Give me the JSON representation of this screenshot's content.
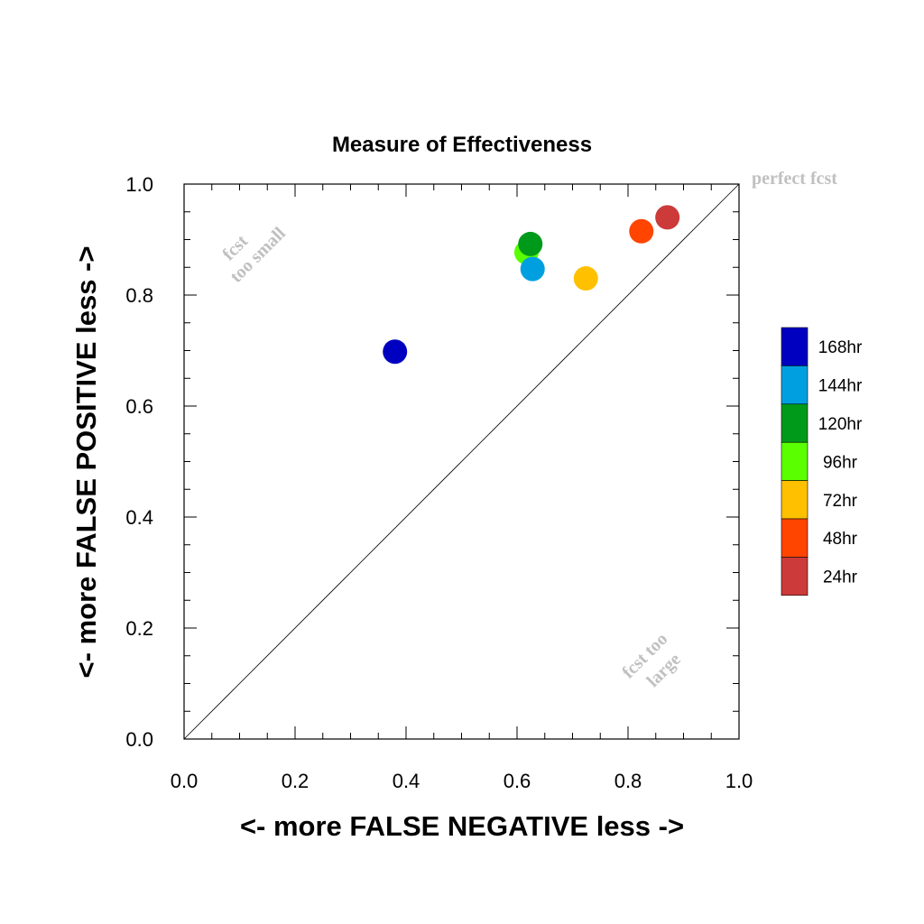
{
  "chart_data": {
    "type": "scatter",
    "title": "Measure of Effectiveness",
    "xlabel": "<- more   FALSE NEGATIVE   less ->",
    "ylabel": "<- more   FALSE POSITIVE   less ->",
    "xlim": [
      0,
      1
    ],
    "ylim": [
      0,
      1
    ],
    "x_ticks": [
      "0.0",
      "0.2",
      "0.4",
      "0.6",
      "0.8",
      "1.0"
    ],
    "y_ticks": [
      "0.0",
      "0.2",
      "0.4",
      "0.6",
      "0.8",
      "1.0"
    ],
    "grid": false,
    "diagonal_line": true,
    "annotations": {
      "perfect": "perfect fcst",
      "small_line1": "fcst",
      "small_line2": "too small",
      "large_line1": "fcst too",
      "large_line2": "large"
    },
    "legend_position": "right",
    "series": [
      {
        "name": "168hr",
        "color": "#0000c0",
        "x": 0.38,
        "y": 0.698
      },
      {
        "name": "144hr",
        "color": "#00a0e0",
        "x": 0.628,
        "y": 0.847
      },
      {
        "name": "120hr",
        "color": "#009a1a",
        "x": 0.624,
        "y": 0.892
      },
      {
        "name": "96hr",
        "color": "#5aff00",
        "x": 0.617,
        "y": 0.877
      },
      {
        "name": "72hr",
        "color": "#ffc000",
        "x": 0.724,
        "y": 0.83
      },
      {
        "name": "48hr",
        "color": "#ff4500",
        "x": 0.824,
        "y": 0.915
      },
      {
        "name": "24hr",
        "color": "#cc3a3a",
        "x": 0.871,
        "y": 0.94
      }
    ]
  }
}
